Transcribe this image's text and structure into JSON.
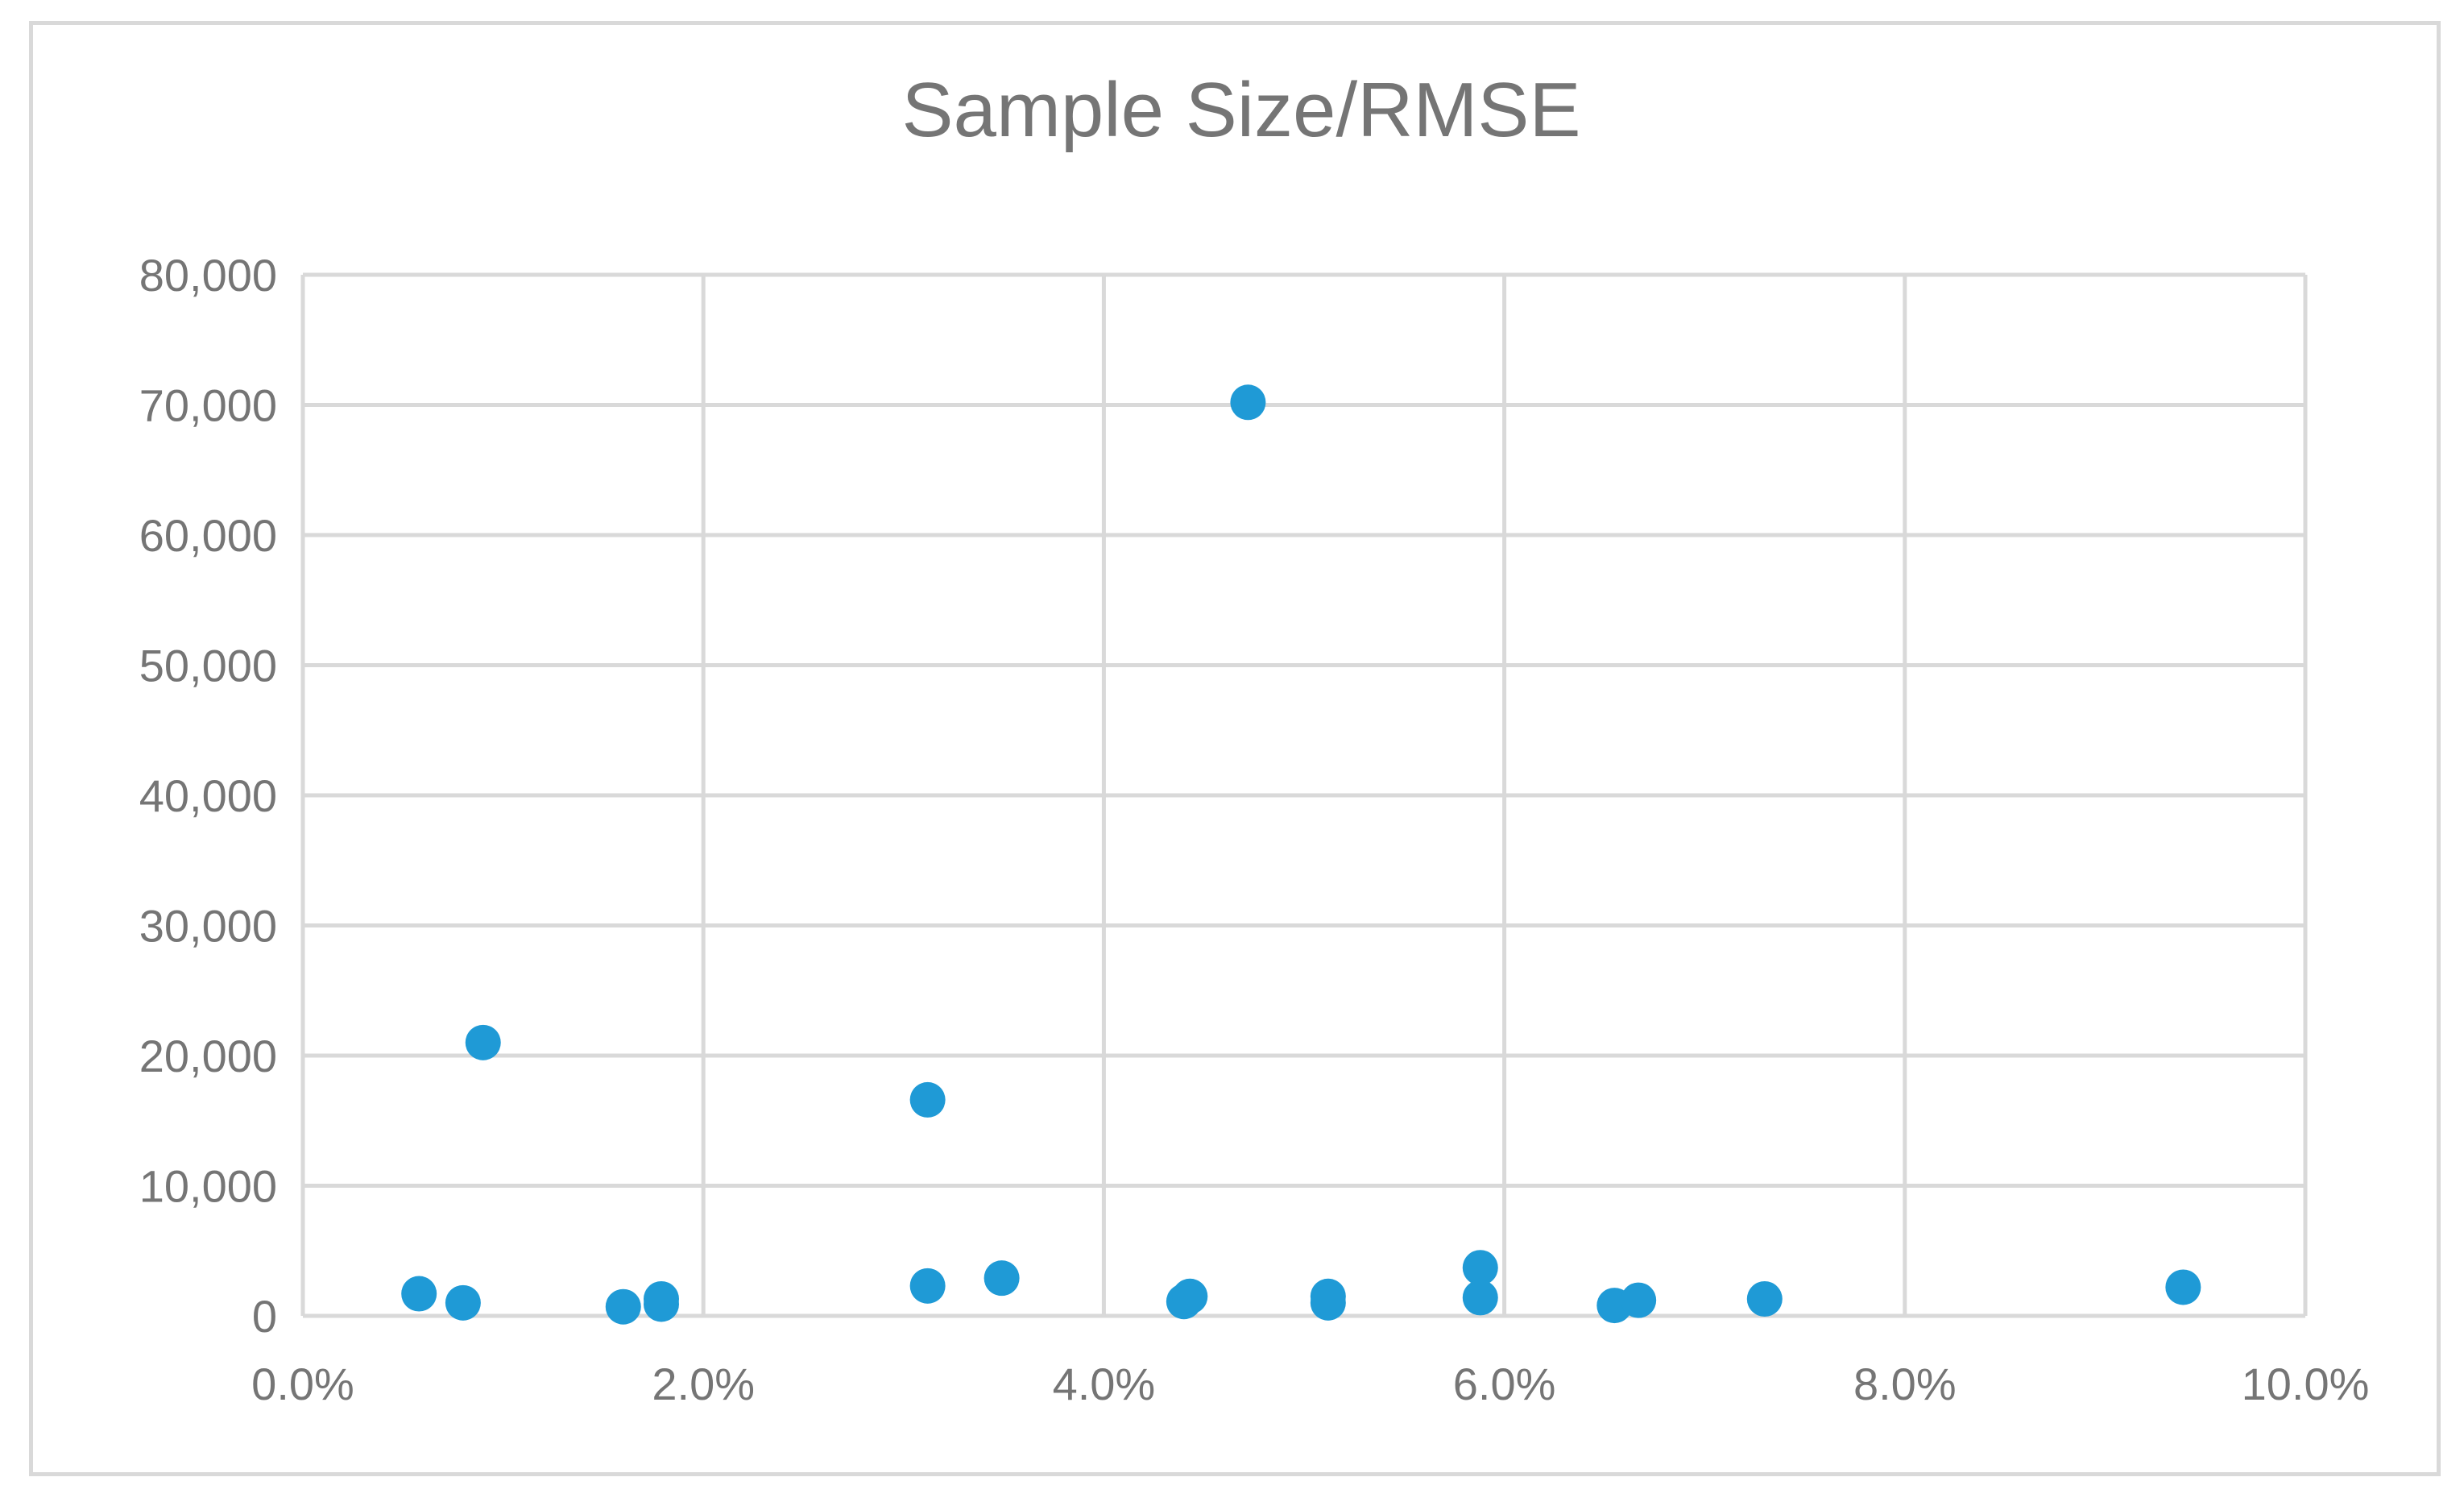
{
  "chart_data": {
    "type": "scatter",
    "title": "Sample Size/RMSE",
    "xlabel": "",
    "ylabel": "",
    "xlim": [
      0,
      0.1
    ],
    "ylim": [
      0,
      80000
    ],
    "x_ticks": [
      0,
      0.02,
      0.04,
      0.06,
      0.08,
      0.1
    ],
    "x_tick_labels": [
      "0.0%",
      "2.0%",
      "4.0%",
      "6.0%",
      "8.0%",
      "10.0%"
    ],
    "y_ticks": [
      0,
      10000,
      20000,
      30000,
      40000,
      50000,
      60000,
      70000,
      80000
    ],
    "y_tick_labels": [
      "0",
      "10,000",
      "20,000",
      "30,000",
      "40,000",
      "50,000",
      "60,000",
      "70,000",
      "80,000"
    ],
    "grid": true,
    "legend": "none",
    "marker_color": "#1f9ad6",
    "points": [
      {
        "x": 0.0058,
        "y": 1700
      },
      {
        "x": 0.008,
        "y": 1000
      },
      {
        "x": 0.009,
        "y": 21000
      },
      {
        "x": 0.016,
        "y": 700
      },
      {
        "x": 0.0179,
        "y": 1300
      },
      {
        "x": 0.0179,
        "y": 900
      },
      {
        "x": 0.0312,
        "y": 16600
      },
      {
        "x": 0.0312,
        "y": 2300
      },
      {
        "x": 0.0349,
        "y": 2900
      },
      {
        "x": 0.044,
        "y": 1100
      },
      {
        "x": 0.0443,
        "y": 1500
      },
      {
        "x": 0.0472,
        "y": 70200
      },
      {
        "x": 0.0512,
        "y": 1500
      },
      {
        "x": 0.0512,
        "y": 1000
      },
      {
        "x": 0.0588,
        "y": 3700
      },
      {
        "x": 0.0588,
        "y": 1400
      },
      {
        "x": 0.0655,
        "y": 800
      },
      {
        "x": 0.0667,
        "y": 1200
      },
      {
        "x": 0.073,
        "y": 1300
      },
      {
        "x": 0.0939,
        "y": 2200
      }
    ]
  }
}
